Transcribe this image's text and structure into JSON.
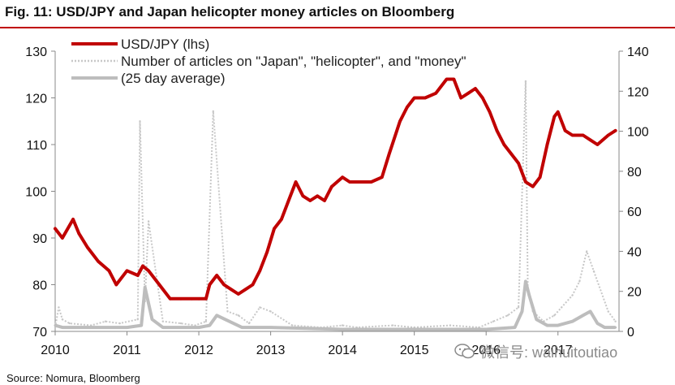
{
  "header": {
    "title": "Fig. 11: USD/JPY and Japan helicopter money articles on Bloomberg"
  },
  "footer": {
    "source": "Source: Nomura, Bloomberg"
  },
  "watermark": {
    "text": "微信号: waihuitoutiao",
    "icon": "wechat-icon"
  },
  "colors": {
    "usdjpy": "#c00000",
    "articles": "#c8c8c8",
    "average": "#bdbdbd",
    "title_rule": "#c00000"
  },
  "chart_data": {
    "type": "line",
    "title": "Fig. 11: USD/JPY and Japan helicopter money articles on Bloomberg",
    "x_tick_labels": [
      "2010",
      "2011",
      "2012",
      "2013",
      "2014",
      "2015",
      "2016",
      "2017"
    ],
    "xlim": [
      2010.0,
      2017.85
    ],
    "y_left": {
      "lim": [
        70,
        130
      ],
      "ticks": [
        70,
        80,
        90,
        100,
        110,
        120,
        130
      ]
    },
    "y_right": {
      "lim": [
        0,
        140
      ],
      "ticks": [
        0,
        20,
        40,
        60,
        80,
        100,
        120,
        140
      ]
    },
    "legend_position": "top-left",
    "series": [
      {
        "name": "USD/JPY (lhs)",
        "axis": "left",
        "style": "solid-thick",
        "x": [
          2010.0,
          2010.1,
          2010.25,
          2010.33,
          2010.45,
          2010.6,
          2010.75,
          2010.85,
          2011.0,
          2011.15,
          2011.22,
          2011.3,
          2011.45,
          2011.6,
          2011.75,
          2011.9,
          2012.0,
          2012.1,
          2012.15,
          2012.25,
          2012.35,
          2012.45,
          2012.55,
          2012.65,
          2012.75,
          2012.85,
          2012.95,
          2013.05,
          2013.15,
          2013.25,
          2013.35,
          2013.45,
          2013.55,
          2013.65,
          2013.75,
          2013.85,
          2014.0,
          2014.1,
          2014.2,
          2014.4,
          2014.55,
          2014.65,
          2014.8,
          2014.9,
          2015.0,
          2015.15,
          2015.3,
          2015.45,
          2015.55,
          2015.65,
          2015.75,
          2015.85,
          2015.95,
          2016.05,
          2016.15,
          2016.25,
          2016.35,
          2016.45,
          2016.55,
          2016.65,
          2016.75,
          2016.85,
          2016.95,
          2017.0,
          2017.1,
          2017.2,
          2017.35,
          2017.45,
          2017.55,
          2017.7,
          2017.8
        ],
        "values": [
          92,
          90,
          94,
          91,
          88,
          85,
          83,
          80,
          83,
          82,
          84,
          83,
          80,
          77,
          77,
          77,
          77,
          77,
          80,
          82,
          80,
          79,
          78,
          79,
          80,
          83,
          87,
          92,
          94,
          98,
          102,
          99,
          98,
          99,
          98,
          101,
          103,
          102,
          102,
          102,
          103,
          108,
          115,
          118,
          120,
          120,
          121,
          124,
          124,
          120,
          121,
          122,
          120,
          117,
          113,
          110,
          108,
          106,
          102,
          101,
          103,
          110,
          116,
          117,
          113,
          112,
          112,
          111,
          110,
          112,
          113
        ]
      },
      {
        "name": "Number of articles on \"Japan\", \"helicopter\", and \"money\"",
        "axis": "right",
        "style": "dotted-spikes",
        "x": [
          2010.0,
          2010.05,
          2010.1,
          2010.2,
          2010.5,
          2010.7,
          2010.9,
          2011.15,
          2011.18,
          2011.25,
          2011.3,
          2011.5,
          2011.75,
          2011.95,
          2012.1,
          2012.2,
          2012.4,
          2012.55,
          2012.7,
          2012.85,
          2013.0,
          2013.3,
          2013.7,
          2014.0,
          2014.2,
          2014.7,
          2015.0,
          2015.5,
          2015.9,
          2016.1,
          2016.3,
          2016.45,
          2016.55,
          2016.58,
          2016.65,
          2016.8,
          2016.95,
          2017.05,
          2017.2,
          2017.3,
          2017.4,
          2017.5,
          2017.7,
          2017.8
        ],
        "values": [
          2,
          12,
          6,
          4,
          3,
          5,
          4,
          6,
          105,
          15,
          55,
          5,
          4,
          3,
          5,
          110,
          10,
          8,
          4,
          12,
          10,
          3,
          2,
          3,
          2,
          3,
          2,
          3,
          2,
          5,
          8,
          12,
          125,
          20,
          10,
          5,
          8,
          12,
          18,
          25,
          40,
          30,
          10,
          5
        ]
      },
      {
        "name": "(25 day average)",
        "axis": "right",
        "style": "solid-thick",
        "x": [
          2010.0,
          2010.1,
          2010.3,
          2010.8,
          2011.0,
          2011.2,
          2011.25,
          2011.35,
          2011.5,
          2012.0,
          2012.15,
          2012.25,
          2012.6,
          2013.0,
          2014.0,
          2015.0,
          2016.0,
          2016.4,
          2016.5,
          2016.55,
          2016.6,
          2016.7,
          2016.85,
          2017.0,
          2017.2,
          2017.35,
          2017.45,
          2017.55,
          2017.65,
          2017.8
        ],
        "values": [
          3,
          2,
          2,
          2,
          2,
          3,
          22,
          6,
          2,
          2,
          3,
          8,
          2,
          2,
          1,
          1,
          1,
          2,
          10,
          25,
          18,
          6,
          3,
          3,
          5,
          8,
          10,
          4,
          2,
          2
        ]
      }
    ]
  }
}
